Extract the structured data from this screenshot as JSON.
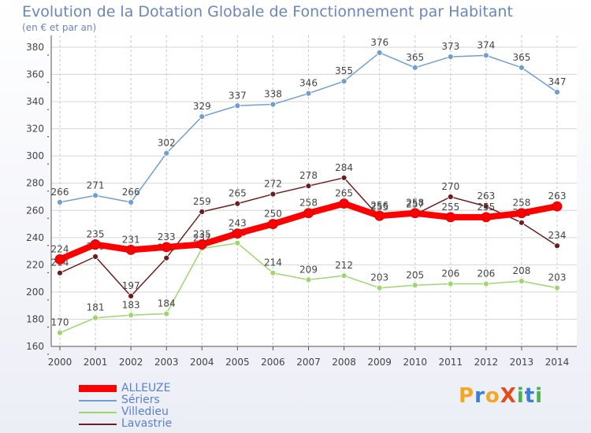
{
  "title": "Evolution de la Dotation Globale de Fonctionnement par Habitant",
  "subtitle": "(en € et par an)",
  "logo": {
    "text": "ProXiti",
    "letters": [
      "P",
      "r",
      "o",
      "X",
      "i",
      "t",
      "i"
    ],
    "colors": [
      "#f5a623",
      "#3b7ddd",
      "#f5a623",
      "#e64a19",
      "#4caf50",
      "#3b7ddd",
      "#4caf50"
    ]
  },
  "chart_data": {
    "type": "line",
    "title": "Evolution de la Dotation Globale de Fonctionnement par Habitant",
    "subtitle": "(en € et par an)",
    "xlabel": "",
    "ylabel": "",
    "x": [
      "2000",
      "2001",
      "2002",
      "2003",
      "2004",
      "2005",
      "2006",
      "2007",
      "2008",
      "2009",
      "2010",
      "2011",
      "2012",
      "2013",
      "2014"
    ],
    "ylim": [
      160,
      380
    ],
    "yticks": [
      160,
      180,
      200,
      220,
      240,
      260,
      280,
      300,
      320,
      340,
      360,
      380
    ],
    "grid": true,
    "legend_position": "bottom-left",
    "series": [
      {
        "name": "Sériers",
        "color": "#6f9fd0",
        "values": [
          266,
          271,
          266,
          302,
          329,
          337,
          338,
          346,
          355,
          376,
          365,
          373,
          374,
          365,
          347
        ]
      },
      {
        "name": "Lavastrie",
        "color": "#6b1e1e",
        "values": [
          214,
          226,
          197,
          225,
          259,
          265,
          272,
          278,
          284,
          255,
          257,
          270,
          263,
          251,
          234
        ]
      },
      {
        "name": "Villedieu",
        "color": "#9ed66e",
        "values": [
          170,
          181,
          183,
          184,
          232,
          236,
          214,
          209,
          212,
          203,
          205,
          206,
          206,
          208,
          203
        ]
      },
      {
        "name": "ALLEUZE",
        "color": "#ff0000",
        "values": [
          224,
          235,
          231,
          233,
          235,
          243,
          250,
          258,
          265,
          256,
          258,
          255,
          255,
          258,
          263
        ]
      }
    ],
    "legend_order": [
      "ALLEUZE",
      "Sériers",
      "Villedieu",
      "Lavastrie"
    ]
  }
}
